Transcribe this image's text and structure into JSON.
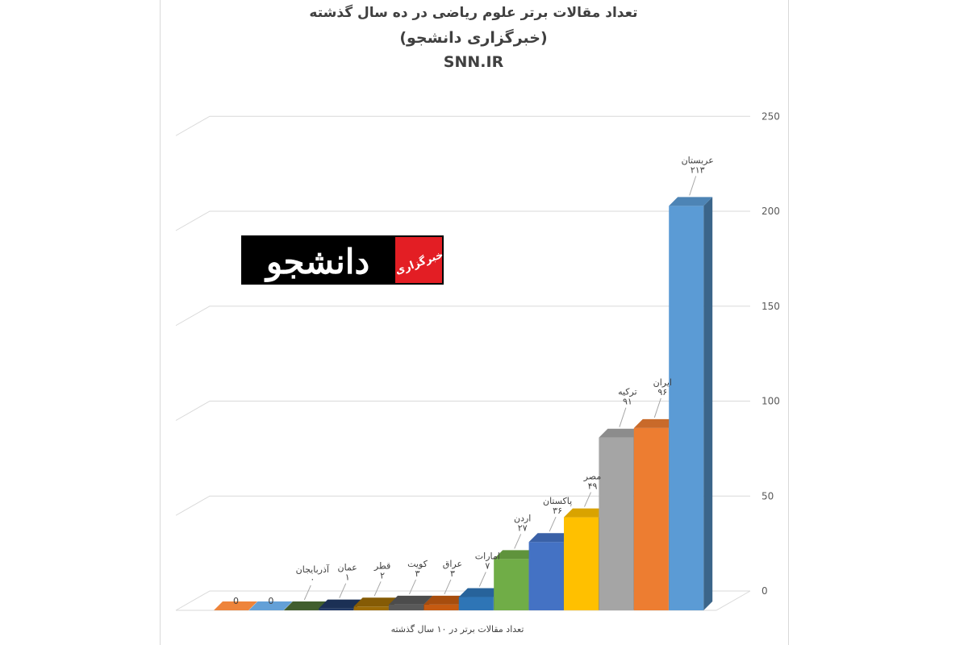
{
  "chart_data": {
    "type": "bar",
    "title": "تعداد مقالات برتر علوم ریاضی در ده سال گذشته",
    "subtitle": "(خبرگزاری دانشجو)",
    "source": "SNN.IR",
    "xlabel": "تعداد مقالات برتر در ۱۰ سال گذشته",
    "ylim": [
      0,
      250
    ],
    "yticks": [
      "0",
      "50",
      "100",
      "150",
      "200",
      "250"
    ],
    "categories": [
      "",
      "",
      "آذربایجان",
      "عمان",
      "قطر",
      "کویت",
      "عراق",
      "امارات",
      "اردن",
      "پاکستان",
      "مصر",
      "ترکیه",
      "ایران",
      "عربستان"
    ],
    "values": [
      0,
      0,
      0,
      1,
      2,
      3,
      3,
      7,
      27,
      36,
      49,
      91,
      96,
      213
    ],
    "value_labels": [
      "0",
      "0",
      "۰",
      "۱",
      "۲",
      "۳",
      "۳",
      "۷",
      "۲۷",
      "۳۶",
      "۴۹",
      "۹۱",
      "۹۶",
      "۲۱۳"
    ],
    "colors": [
      "#ed7d31",
      "#5b9bd5",
      "#375623",
      "#203864",
      "#9c6b06",
      "#595959",
      "#c55a11",
      "#2e75b6",
      "#70ad47",
      "#4472c4",
      "#ffc000",
      "#a5a5a5",
      "#ed7d31",
      "#5b9bd5"
    ],
    "grid": true,
    "yaxis_position": "right",
    "projection": "3d"
  },
  "logo": {
    "text": "دانشجو",
    "badge_text": "خبرگزاری",
    "bg_color": "#000000",
    "badge_color": "#e31e24"
  }
}
